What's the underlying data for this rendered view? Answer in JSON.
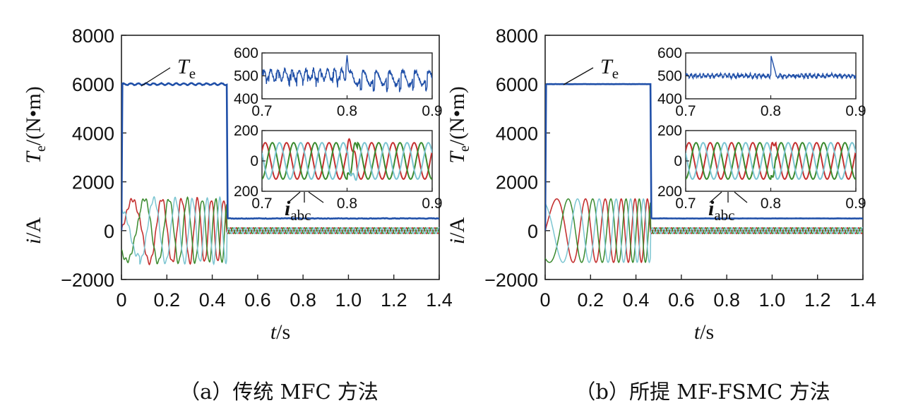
{
  "chart_data": [
    {
      "type": "line",
      "panel_id": "a",
      "caption": "（a）传统 MFC 方法",
      "xlabel_var": "t",
      "xlabel_unit": "/s",
      "ylabel_torque_var": "T",
      "ylabel_torque_sub": "e",
      "ylabel_torque_unit": "/(N•m)",
      "ylabel_current_var": "i",
      "ylabel_current_unit": "/A",
      "xlim": [
        0,
        1.4
      ],
      "ylim": [
        -2000,
        8000
      ],
      "x_ticks": [
        "0",
        "0.2",
        "0.4",
        "0.6",
        "0.8",
        "1.0",
        "1.2",
        "1.4"
      ],
      "y_ticks": [
        "8000",
        "6000",
        "4000",
        "2000",
        "0",
        "−2000"
      ],
      "annotation_te_var": "T",
      "annotation_te_sub": "e",
      "series": [
        {
          "name": "T_e",
          "color": "#1f4fa8",
          "x": [
            0,
            0.005,
            0.46,
            0.47,
            1.4
          ],
          "y": [
            0,
            6000,
            6000,
            500,
            500
          ]
        },
        {
          "name": "i_a",
          "color": "#c43030",
          "amplitude_start": 1300,
          "amplitude_end": 120
        },
        {
          "name": "i_b",
          "color": "#3a8a2e",
          "amplitude_start": 1300,
          "amplitude_end": 120
        },
        {
          "name": "i_c",
          "color": "#7cc5d1",
          "amplitude_start": 1300,
          "amplitude_end": 120
        }
      ],
      "insets": [
        {
          "name": "torque-zoom",
          "xlim": [
            0.7,
            0.9
          ],
          "ylim": [
            400,
            600
          ],
          "x_ticks": [
            "0.7",
            "0.8",
            "0.9"
          ],
          "y_ticks": [
            "600",
            "500",
            "400"
          ],
          "description_values": {
            "mean": 500,
            "ripple": 45,
            "step_time": 0.8
          }
        },
        {
          "name": "current-zoom",
          "xlim": [
            0.7,
            0.9
          ],
          "ylim": [
            -200,
            200
          ],
          "x_ticks": [
            "0.7",
            "0.8",
            "0.9"
          ],
          "y_ticks": [
            "200",
            "0",
            "200"
          ],
          "annotation_var": "i",
          "annotation_sub": "abc",
          "amplitude": 120
        }
      ]
    },
    {
      "type": "line",
      "panel_id": "b",
      "caption": "（b）所提 MF-FSMC 方法",
      "xlabel_var": "t",
      "xlabel_unit": "/s",
      "ylabel_torque_var": "T",
      "ylabel_torque_sub": "e",
      "ylabel_torque_unit": "/(N•m)",
      "ylabel_current_var": "i",
      "ylabel_current_unit": "/A",
      "xlim": [
        0,
        1.4
      ],
      "ylim": [
        -2000,
        8000
      ],
      "x_ticks": [
        "0",
        "0.2",
        "0.4",
        "0.6",
        "0.8",
        "1.0",
        "1.2",
        "1.4"
      ],
      "y_ticks": [
        "8000",
        "6000",
        "4000",
        "2000",
        "0",
        "−2000"
      ],
      "annotation_te_var": "T",
      "annotation_te_sub": "e",
      "series": [
        {
          "name": "T_e",
          "color": "#1f4fa8",
          "x": [
            0,
            0.005,
            0.46,
            0.47,
            1.4
          ],
          "y": [
            0,
            6000,
            6000,
            500,
            500
          ]
        },
        {
          "name": "i_a",
          "color": "#c43030",
          "amplitude_start": 1300,
          "amplitude_end": 120
        },
        {
          "name": "i_b",
          "color": "#3a8a2e",
          "amplitude_start": 1300,
          "amplitude_end": 120
        },
        {
          "name": "i_c",
          "color": "#7cc5d1",
          "amplitude_start": 1300,
          "amplitude_end": 120
        }
      ],
      "insets": [
        {
          "name": "torque-zoom",
          "xlim": [
            0.7,
            0.9
          ],
          "ylim": [
            400,
            600
          ],
          "x_ticks": [
            "0.7",
            "0.8",
            "0.9"
          ],
          "y_ticks": [
            "600",
            "500",
            "400"
          ],
          "description_values": {
            "mean": 500,
            "ripple": 15,
            "step_time": 0.8
          }
        },
        {
          "name": "current-zoom",
          "xlim": [
            0.7,
            0.9
          ],
          "ylim": [
            -200,
            200
          ],
          "x_ticks": [
            "0.7",
            "0.8",
            "0.9"
          ],
          "y_ticks": [
            "200",
            "0",
            "200"
          ],
          "annotation_var": "i",
          "annotation_sub": "abc",
          "amplitude": 120
        }
      ]
    }
  ]
}
